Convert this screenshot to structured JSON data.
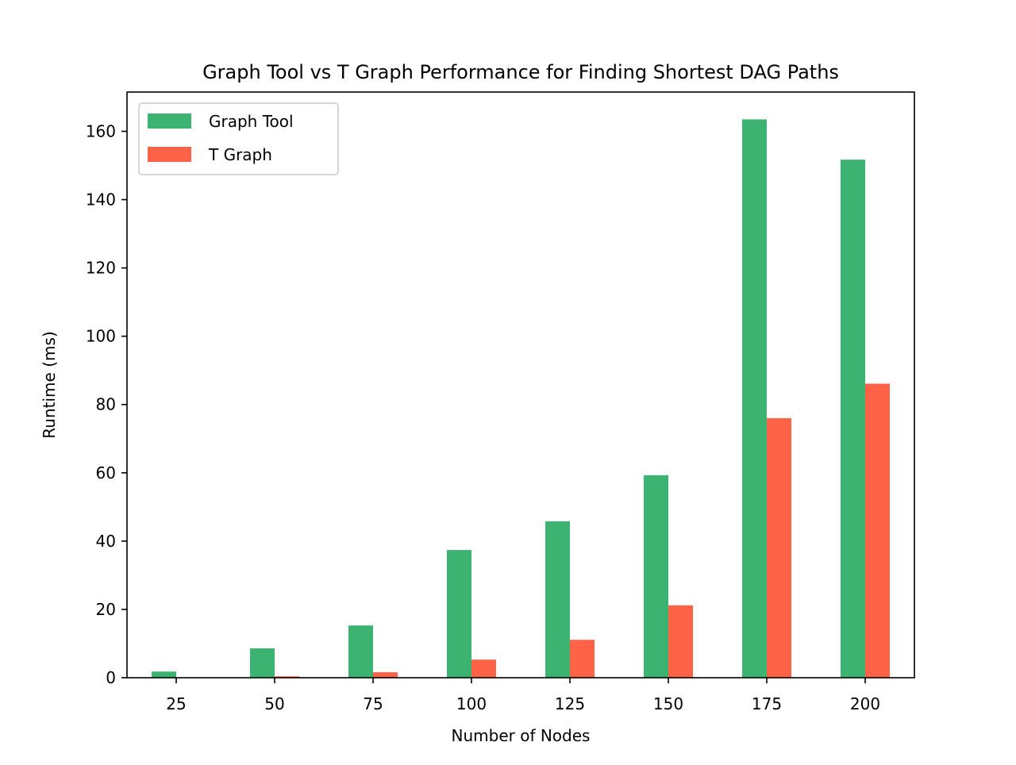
{
  "chart_data": {
    "type": "bar",
    "title": "Graph Tool vs T Graph Performance for Finding Shortest DAG Paths",
    "xlabel": "Number of Nodes",
    "ylabel": "Runtime (ms)",
    "categories": [
      "25",
      "50",
      "75",
      "100",
      "125",
      "150",
      "175",
      "200"
    ],
    "ylim": [
      0,
      171.5
    ],
    "yticks": [
      "0",
      "20",
      "40",
      "60",
      "80",
      "100",
      "120",
      "140",
      "160"
    ],
    "grid": false,
    "legend_position": "top-left",
    "series": [
      {
        "name": "Graph Tool",
        "color": "#3cb371",
        "values": [
          1.8,
          8.6,
          15.3,
          37.4,
          45.8,
          59.3,
          163.5,
          151.7
        ]
      },
      {
        "name": "T Graph",
        "color": "#ff6347",
        "values": [
          0.1,
          0.4,
          1.6,
          5.3,
          11.1,
          21.2,
          76.0,
          86.1
        ]
      }
    ]
  }
}
